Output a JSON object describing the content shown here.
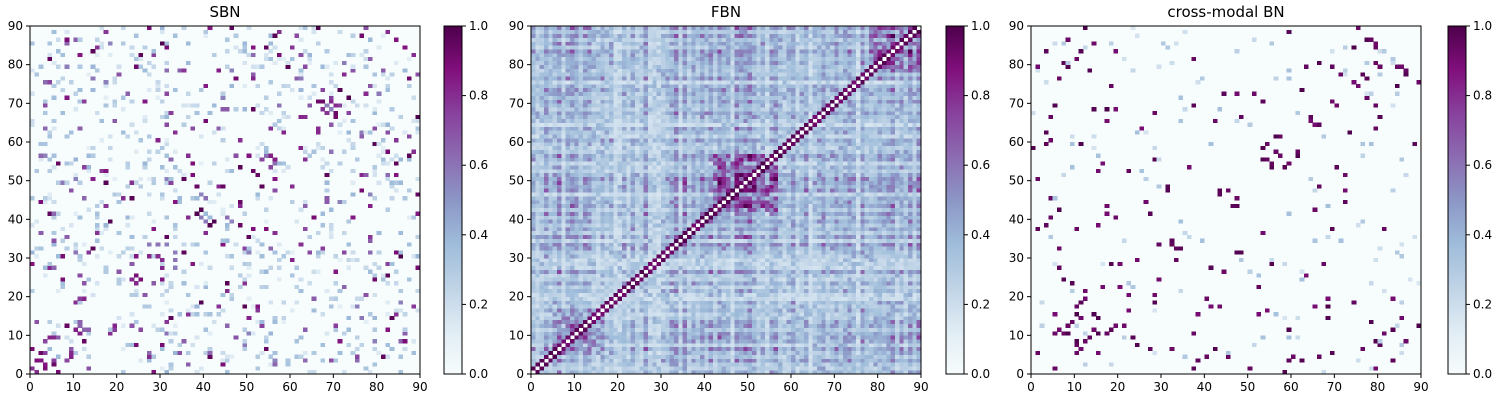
{
  "chart_data": [
    {
      "type": "heatmap",
      "title": "SBN",
      "xlim": [
        0,
        90
      ],
      "ylim": [
        0,
        90
      ],
      "x_ticks": [
        "0",
        "10",
        "20",
        "30",
        "40",
        "50",
        "60",
        "70",
        "80",
        "90"
      ],
      "y_ticks": [
        "0",
        "10",
        "20",
        "30",
        "40",
        "50",
        "60",
        "70",
        "80",
        "90"
      ],
      "colorbar_range": [
        0,
        1
      ],
      "colorbar_ticks": [
        "0.0",
        "0.2",
        "0.4",
        "0.6",
        "0.8",
        "1.0"
      ],
      "colormap": "BuPu",
      "density": "sparse",
      "note_values": "90x90 symmetric connectivity matrix; mostly near 0 with scattered strong entries"
    },
    {
      "type": "heatmap",
      "title": "FBN",
      "xlim": [
        0,
        90
      ],
      "ylim": [
        0,
        90
      ],
      "x_ticks": [
        "0",
        "10",
        "20",
        "30",
        "40",
        "50",
        "60",
        "70",
        "80",
        "90"
      ],
      "y_ticks": [
        "0",
        "10",
        "20",
        "30",
        "40",
        "50",
        "60",
        "70",
        "80",
        "90"
      ],
      "colorbar_range": [
        0,
        1
      ],
      "colorbar_ticks": [
        "0.0",
        "0.2",
        "0.4",
        "0.6",
        "0.8",
        "1.0"
      ],
      "colormap": "BuPu",
      "density": "dense",
      "note_values": "90x90 symmetric connectivity matrix; dense with strong block near 45-55"
    },
    {
      "type": "heatmap",
      "title": "cross-modal BN",
      "xlim": [
        0,
        90
      ],
      "ylim": [
        0,
        90
      ],
      "x_ticks": [
        "0",
        "10",
        "20",
        "30",
        "40",
        "50",
        "60",
        "70",
        "80",
        "90"
      ],
      "y_ticks": [
        "0",
        "10",
        "20",
        "30",
        "40",
        "50",
        "60",
        "70",
        "80",
        "90"
      ],
      "colorbar_range": [
        0,
        1
      ],
      "colorbar_ticks": [
        "0.0",
        "0.2",
        "0.4",
        "0.6",
        "0.8",
        "1.0"
      ],
      "colormap": "BuPu",
      "density": "very-sparse",
      "note_values": "90x90 symmetric connectivity matrix; very sparse, near-binary strong entries"
    }
  ]
}
